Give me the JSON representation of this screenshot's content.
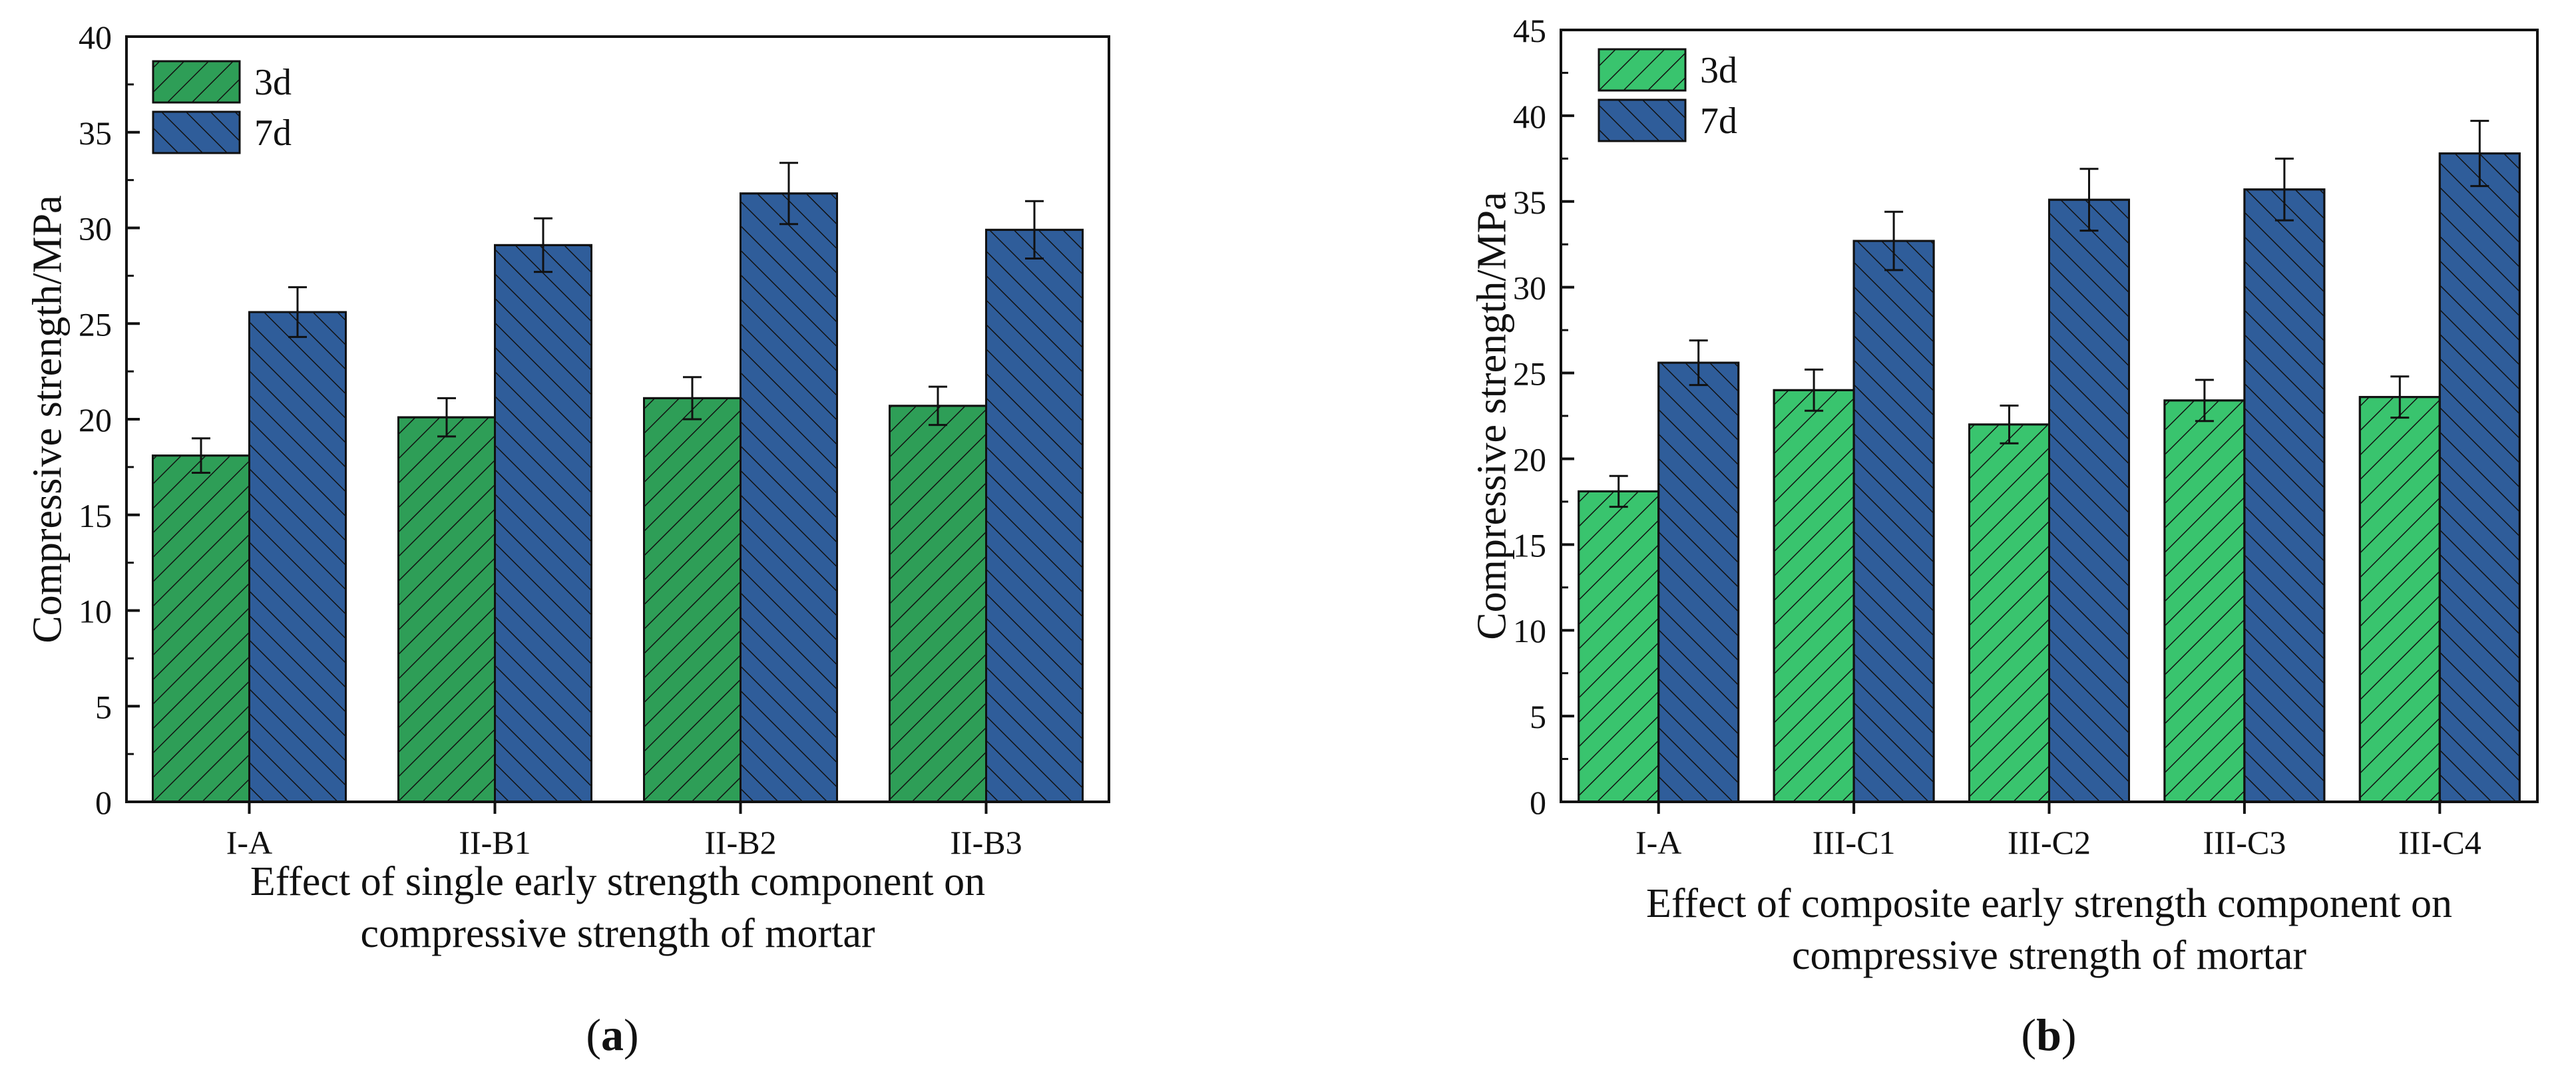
{
  "chart_data": [
    {
      "type": "bar",
      "panel_label": "a",
      "title": "",
      "xlabel": [
        "Effect of single early strength component on",
        "compressive strength of mortar"
      ],
      "ylabel": "Compressive strength/MPa",
      "ylim": [
        0,
        40
      ],
      "yticks": [
        0,
        5,
        10,
        15,
        20,
        25,
        30,
        35,
        40
      ],
      "categories": [
        "I-A",
        "II-B1",
        "II-B2",
        "II-B3"
      ],
      "series": [
        {
          "name": "3d",
          "values": [
            18.1,
            20.1,
            21.1,
            20.7
          ],
          "errors": [
            0.9,
            1.0,
            1.1,
            1.0
          ],
          "color": "#2e9e57"
        },
        {
          "name": "7d",
          "values": [
            25.6,
            29.1,
            31.8,
            29.9
          ],
          "errors": [
            1.3,
            1.4,
            1.6,
            1.5
          ],
          "color": "#2f5d9a"
        }
      ],
      "legend_position": "top-left"
    },
    {
      "type": "bar",
      "panel_label": "b",
      "title": "",
      "xlabel": [
        "Effect of composite early strength component on",
        "compressive strength of mortar"
      ],
      "ylabel": "Compressive strength/MPa",
      "ylim": [
        0,
        45
      ],
      "yticks": [
        0,
        5,
        10,
        15,
        20,
        25,
        30,
        35,
        40,
        45
      ],
      "categories": [
        "I-A",
        "III-C1",
        "III-C2",
        "III-C3",
        "III-C4"
      ],
      "series": [
        {
          "name": "3d",
          "values": [
            18.1,
            24.0,
            22.0,
            23.4,
            23.6
          ],
          "errors": [
            0.9,
            1.2,
            1.1,
            1.2,
            1.2
          ],
          "color": "#39c46e"
        },
        {
          "name": "7d",
          "values": [
            25.6,
            32.7,
            35.1,
            35.7,
            37.8
          ],
          "errors": [
            1.3,
            1.7,
            1.8,
            1.8,
            1.9
          ],
          "color": "#2f5d9a"
        }
      ],
      "legend_position": "top-left"
    }
  ]
}
